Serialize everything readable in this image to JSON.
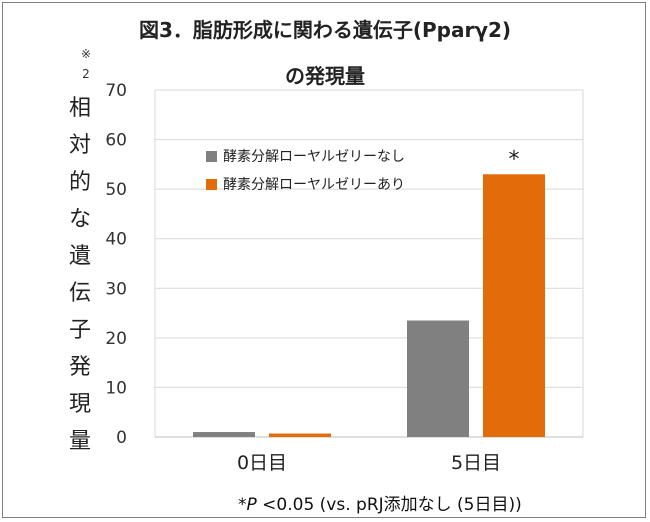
{
  "chart_data": {
    "type": "bar",
    "title_line1": "図3．脂肪形成に関わる遺伝子(Pparγ2)",
    "title_line2": "の発現量",
    "ylabel": "相対的な遺伝子発現量",
    "ylabel_note": [
      "※",
      "2"
    ],
    "categories": [
      "0日目",
      "5日目"
    ],
    "ylim": [
      0,
      70
    ],
    "yticks": [
      0,
      10,
      20,
      30,
      40,
      50,
      60,
      70
    ],
    "grid": true,
    "legend_position": "top-left",
    "series": [
      {
        "name": "酵素分解ローヤルゼリーなし",
        "color": "#808080",
        "values": [
          1,
          23.5
        ]
      },
      {
        "name": "酵素分解ローヤルゼリーあり",
        "color": "#e36c0a",
        "values": [
          0.7,
          53
        ]
      }
    ],
    "annotation": {
      "text": "*",
      "category": "5日目",
      "series": 1
    },
    "footnote": {
      "star": "*",
      "p": "P",
      "text": " <0.05  (vs. pRJ添加なし (5日目))"
    }
  }
}
